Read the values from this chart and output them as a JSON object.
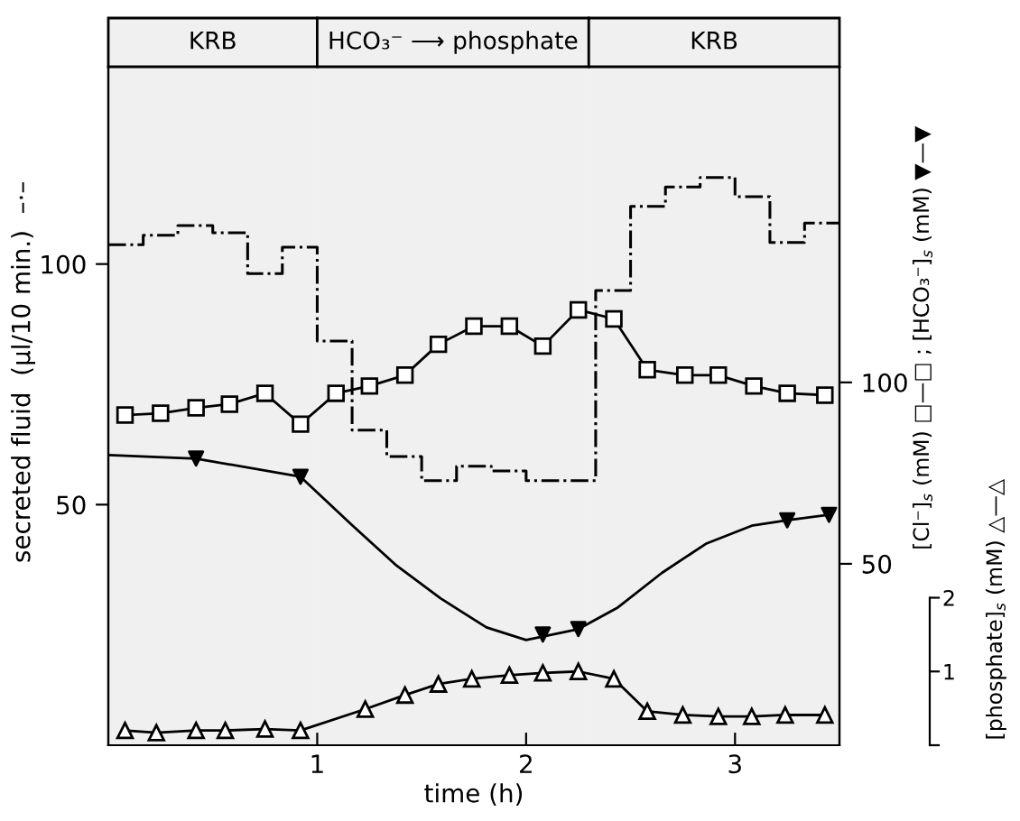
{
  "chart_data": {
    "type": "line",
    "xlabel": "time (h)",
    "ylabel": "secreted fluid  (µl/10 min.)  –·–",
    "y2label": "[Cl⁻]$_{s}$ (mM) □—□ ; [HCO₃⁻]$_{s}$ (mM) ▼—▼",
    "y3label": "[phosphate]$_{s}$ (mM) △—△",
    "xlim": [
      0,
      3.5
    ],
    "xticks": [
      1,
      2,
      3
    ],
    "ylim": [
      0,
      141
    ],
    "yticks": [
      50,
      100
    ],
    "y2lim": [
      0,
      187
    ],
    "y2ticks": [
      50,
      100
    ],
    "y3lim": [
      0,
      9.2
    ],
    "y3ticks": [
      {
        "value": 0,
        "label": null
      },
      1,
      2
    ],
    "grid": false,
    "bands": [
      {
        "axis": "x",
        "from": 0,
        "to": 1,
        "label": "KRB",
        "color": "#f0f0f0"
      },
      {
        "axis": "x",
        "from": 1,
        "to": 2.3,
        "label": "HCO₃⁻ ⟶ phosphate",
        "color": "#f0f0f0"
      },
      {
        "axis": "x",
        "from": 2.3,
        "to": 3.5,
        "label": "KRB",
        "color": "#f0f0f0"
      }
    ],
    "series": [
      {
        "type": "step",
        "color": "#000000",
        "line_style": "dashdot",
        "marker": "none",
        "x": [
          0,
          0.167,
          0.333,
          0.5,
          0.667,
          0.833,
          1,
          1.167,
          1.333,
          1.5,
          1.667,
          1.833,
          2,
          2.167,
          2.333,
          2.5,
          2.667,
          2.833,
          3,
          3.167,
          3.333,
          3.5
        ],
        "values": [
          104,
          106,
          108,
          106.5,
          98,
          103.5,
          84,
          65.5,
          60,
          55,
          58,
          57,
          55,
          55,
          94.5,
          112,
          116,
          118,
          114,
          104.5,
          108.5,
          108.5
        ]
      },
      {
        "axis": "y2",
        "color": "#000000",
        "marker": "square",
        "line_style": "solid",
        "x": [
          0.08,
          0.25,
          0.42,
          0.58,
          0.75,
          0.92,
          1.09,
          1.25,
          1.42,
          1.58,
          1.75,
          1.92,
          2.08,
          2.25,
          2.42,
          2.58,
          2.76,
          2.92,
          3.09,
          3.25,
          3.43
        ],
        "values": [
          91,
          91.5,
          93,
          94,
          97,
          88.5,
          97,
          99,
          102,
          110.5,
          115.5,
          115.5,
          110,
          120,
          117.5,
          103.5,
          102,
          102,
          99,
          97,
          96.5
        ]
      },
      {
        "axis": "y2",
        "color": "#000000",
        "marker": "none",
        "line_style": "solid",
        "x": [
          0,
          0.42,
          0.92,
          1.17,
          1.38,
          1.59,
          1.81,
          2.0,
          2.25,
          2.44,
          2.65,
          2.86,
          3.08,
          3.25,
          3.45
        ],
        "values": [
          80,
          79,
          74,
          60.5,
          49.5,
          40.5,
          32.5,
          29,
          32,
          38,
          47.5,
          55.5,
          60.5,
          62,
          63.5
        ]
      },
      {
        "type": "scatter",
        "axis": "y2",
        "color": "#000000",
        "marker": "triangle_down",
        "x": [
          0.42,
          0.92,
          2.08,
          2.25,
          3.25,
          3.45
        ],
        "values": [
          79,
          74,
          30.5,
          32,
          62,
          63.5
        ]
      },
      {
        "axis": "y3",
        "color": "#000000",
        "marker": "triangle",
        "line_style": "solid",
        "x": [
          0.08,
          0.23,
          0.42,
          0.56,
          0.75,
          0.92,
          1.23,
          1.42,
          1.58,
          1.74,
          1.92,
          2.08,
          2.25,
          2.42,
          2.58,
          2.75,
          2.92,
          3.08,
          3.24,
          3.43
        ],
        "values": [
          0.2,
          0.17,
          0.2,
          0.2,
          0.22,
          0.2,
          0.49,
          0.68,
          0.83,
          0.9,
          0.95,
          0.98,
          1.0,
          0.9,
          0.46,
          0.41,
          0.39,
          0.39,
          0.41,
          0.41
        ]
      }
    ]
  }
}
